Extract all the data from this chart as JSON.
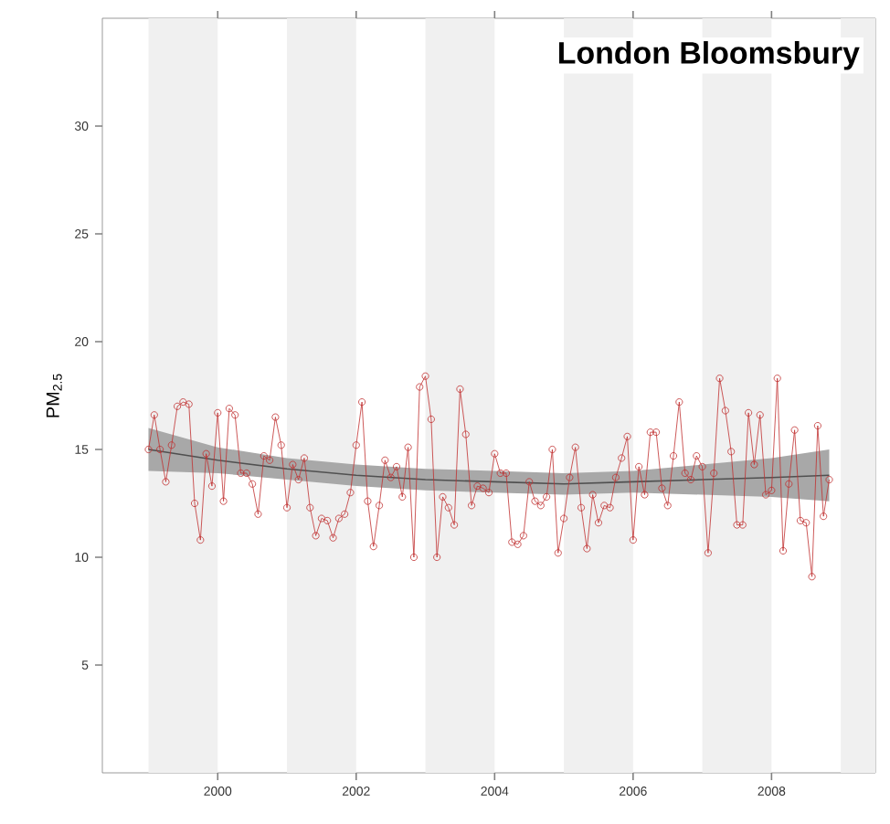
{
  "chart_data": {
    "type": "line",
    "title": "London Bloomsbury",
    "ylabel": "PM$_{2.5}$",
    "xlim": [
      "1998-05",
      "2009-07"
    ],
    "xticks": [
      "2000",
      "2002",
      "2004",
      "2006",
      "2008"
    ],
    "ylim": [
      0,
      35
    ],
    "yticks": [
      5,
      10,
      15,
      20,
      25,
      30
    ],
    "grid": false,
    "marker": "circle",
    "line_style": "solid",
    "tick_labels": "xy",
    "bands": [
      {
        "axis": "x",
        "from": "1999-01",
        "to": "2000-01",
        "color": "#f0f0f0"
      },
      {
        "axis": "x",
        "from": "2001-01",
        "to": "2002-01",
        "color": "#f0f0f0"
      },
      {
        "axis": "x",
        "from": "2003-01",
        "to": "2004-01",
        "color": "#f0f0f0"
      },
      {
        "axis": "x",
        "from": "2005-01",
        "to": "2006-01",
        "color": "#f0f0f0"
      },
      {
        "axis": "x",
        "from": "2007-01",
        "to": "2008-01",
        "color": "#f0f0f0"
      },
      {
        "axis": "x",
        "from": "2009-01",
        "to": "2009-07",
        "color": "#f0f0f0"
      }
    ],
    "series": [
      {
        "color": "#505050",
        "marker": "none",
        "x": [
          "1999-01",
          "2000-01",
          "2001-01",
          "2002-01",
          "2003-01",
          "2004-01",
          "2005-01",
          "2006-01",
          "2007-01",
          "2008-01",
          "2008-11"
        ],
        "values": [
          15.0,
          14.5,
          14.1,
          13.8,
          13.6,
          13.5,
          13.4,
          13.5,
          13.6,
          13.7,
          13.8
        ],
        "lower": [
          14.0,
          13.9,
          13.6,
          13.3,
          13.1,
          13.0,
          12.9,
          13.0,
          12.9,
          12.8,
          12.6
        ],
        "upper": [
          16.0,
          15.1,
          14.6,
          14.3,
          14.1,
          14.0,
          13.9,
          14.0,
          14.3,
          14.6,
          15.0
        ]
      },
      {
        "color": "#c03030",
        "x": [
          "1999-01",
          "1999-02",
          "1999-03",
          "1999-04",
          "1999-05",
          "1999-06",
          "1999-07",
          "1999-08",
          "1999-09",
          "1999-10",
          "1999-11",
          "1999-12",
          "2000-01",
          "2000-02",
          "2000-03",
          "2000-04",
          "2000-05",
          "2000-06",
          "2000-07",
          "2000-08",
          "2000-09",
          "2000-10",
          "2000-11",
          "2000-12",
          "2001-01",
          "2001-02",
          "2001-03",
          "2001-04",
          "2001-05",
          "2001-06",
          "2001-07",
          "2001-08",
          "2001-09",
          "2001-10",
          "2001-11",
          "2001-12",
          "2002-01",
          "2002-02",
          "2002-03",
          "2002-04",
          "2002-05",
          "2002-06",
          "2002-07",
          "2002-08",
          "2002-09",
          "2002-10",
          "2002-11",
          "2002-12",
          "2003-01",
          "2003-02",
          "2003-03",
          "2003-04",
          "2003-05",
          "2003-06",
          "2003-07",
          "2003-08",
          "2003-09",
          "2003-10",
          "2003-11",
          "2003-12",
          "2004-01",
          "2004-02",
          "2004-03",
          "2004-04",
          "2004-05",
          "2004-06",
          "2004-07",
          "2004-08",
          "2004-09",
          "2004-10",
          "2004-11",
          "2004-12",
          "2005-01",
          "2005-02",
          "2005-03",
          "2005-04",
          "2005-05",
          "2005-06",
          "2005-07",
          "2005-08",
          "2005-09",
          "2005-10",
          "2005-11",
          "2005-12",
          "2006-01",
          "2006-02",
          "2006-03",
          "2006-04",
          "2006-05",
          "2006-06",
          "2006-07",
          "2006-08",
          "2006-09",
          "2006-10",
          "2006-11",
          "2006-12",
          "2007-01",
          "2007-02",
          "2007-03",
          "2007-04",
          "2007-05",
          "2007-06",
          "2007-07",
          "2007-08",
          "2007-09",
          "2007-10",
          "2007-11",
          "2007-12",
          "2008-01",
          "2008-02",
          "2008-03",
          "2008-04",
          "2008-05",
          "2008-06",
          "2008-07",
          "2008-08",
          "2008-09",
          "2008-10",
          "2008-11"
        ],
        "values": [
          15.0,
          16.6,
          15.0,
          13.5,
          15.2,
          17.0,
          17.2,
          17.1,
          12.5,
          10.8,
          14.8,
          13.3,
          16.7,
          12.6,
          16.9,
          16.6,
          13.9,
          13.9,
          13.4,
          12.0,
          14.7,
          14.5,
          16.5,
          15.2,
          12.3,
          14.3,
          13.6,
          14.6,
          12.3,
          11.0,
          11.8,
          11.7,
          10.9,
          11.8,
          12.0,
          13.0,
          15.2,
          17.2,
          12.6,
          10.5,
          12.4,
          14.5,
          13.7,
          14.2,
          12.8,
          15.1,
          10.0,
          17.9,
          18.4,
          16.4,
          10.0,
          12.8,
          12.3,
          11.5,
          17.8,
          15.7,
          12.4,
          13.3,
          13.2,
          13.0,
          14.8,
          13.9,
          13.9,
          10.7,
          10.6,
          11.0,
          13.5,
          12.6,
          12.4,
          12.8,
          15.0,
          10.2,
          11.8,
          13.7,
          15.1,
          12.3,
          10.4,
          12.9,
          11.6,
          12.4,
          12.3,
          13.7,
          14.6,
          15.6,
          10.8,
          14.2,
          12.9,
          15.8,
          15.8,
          13.2,
          12.4,
          14.7,
          17.2,
          13.9,
          13.6,
          14.7,
          14.2,
          10.2,
          13.9,
          18.3,
          16.8,
          14.9,
          11.5,
          11.5,
          16.7,
          14.3,
          16.6,
          12.9,
          13.1,
          18.3,
          10.3,
          13.4,
          15.9,
          11.7,
          11.6,
          9.1,
          16.1,
          11.9,
          13.6
        ]
      }
    ]
  }
}
